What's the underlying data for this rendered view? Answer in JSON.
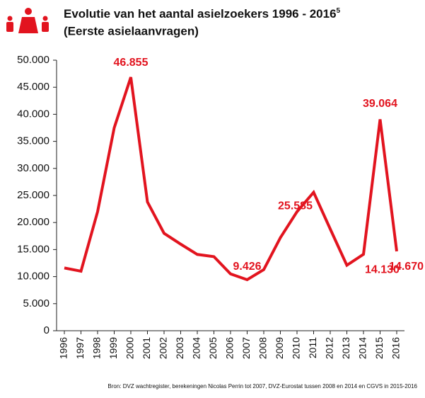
{
  "chart_data": {
    "type": "line",
    "title": "Evolutie van het aantal asielzoekers 1996 - 2016",
    "title_footnote": "5",
    "subtitle": "(Eerste asielaanvragen)",
    "source": "Bron: DVZ wachtregister, berekeningen Nicolas Perrin tot 2007, DVZ-Eurostat tussen 2008 en 2014 en CGVS in 2015-2016",
    "categories": [
      "1996",
      "1997",
      "1998",
      "1999",
      "2000",
      "2001",
      "2002",
      "2003",
      "2004",
      "2005",
      "2006",
      "2007",
      "2008",
      "2009",
      "2010",
      "2011",
      "2012",
      "2013",
      "2014",
      "2015",
      "2016"
    ],
    "series": [
      {
        "name": "Eerste asielaanvragen",
        "color": "#e2141f",
        "values": [
          11600,
          11000,
          22000,
          37500,
          46855,
          23800,
          18000,
          16000,
          14100,
          13700,
          10500,
          9426,
          11300,
          17200,
          22000,
          25585,
          18800,
          12100,
          14130,
          39064,
          14670
        ],
        "value_labels": [
          null,
          null,
          null,
          null,
          "46.855",
          null,
          null,
          null,
          null,
          null,
          null,
          "9.426",
          null,
          null,
          null,
          "25.585",
          null,
          null,
          "14.130",
          "39.064",
          "14.670"
        ]
      }
    ],
    "ylim": [
      0,
      50000
    ],
    "yticks": [
      0,
      {
        "value": 5000,
        "label": "5.000"
      },
      {
        "value": 10000,
        "label": "10.000"
      },
      {
        "value": 15000,
        "label": "15.000"
      },
      {
        "value": 20000,
        "label": "20.000"
      },
      {
        "value": 25000,
        "label": "25.000"
      },
      {
        "value": 30000,
        "label": "30.000"
      },
      {
        "value": 35000,
        "label": "35.000"
      },
      {
        "value": 40000,
        "label": "40.000"
      },
      {
        "value": 45000,
        "label": "45.000"
      },
      {
        "value": 50000,
        "label": "50.000"
      }
    ]
  }
}
